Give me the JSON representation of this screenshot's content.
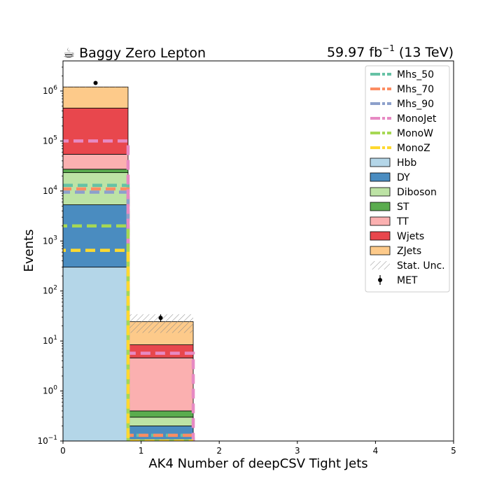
{
  "chart_data": {
    "type": "bar",
    "title_left": "☕ Baggy Zero Lepton",
    "title_right": {
      "main": "59.97 fb",
      "sup": "−1",
      "tail": " (13 TeV)"
    },
    "xlabel": "AK4 Number of deepCSV Tight Jets",
    "ylabel": "Events",
    "xlim": [
      0,
      5
    ],
    "ylim": [
      0.1,
      4000000
    ],
    "yscale": "log",
    "x_ticks": [
      {
        "value": 0,
        "label": "0"
      },
      {
        "value": 1,
        "label": "1"
      },
      {
        "value": 2,
        "label": "2"
      },
      {
        "value": 3,
        "label": "3"
      },
      {
        "value": 4,
        "label": "4"
      },
      {
        "value": 5,
        "label": "5"
      }
    ],
    "y_ticks": [
      {
        "value": 0.1,
        "base": "10",
        "exp": "−1"
      },
      {
        "value": 1,
        "base": "10",
        "exp": "0"
      },
      {
        "value": 10,
        "base": "10",
        "exp": "1"
      },
      {
        "value": 100,
        "base": "10",
        "exp": "2"
      },
      {
        "value": 1000,
        "base": "10",
        "exp": "3"
      },
      {
        "value": 10000,
        "base": "10",
        "exp": "4"
      },
      {
        "value": 100000,
        "base": "10",
        "exp": "5"
      },
      {
        "value": 1000000,
        "base": "10",
        "exp": "6"
      }
    ],
    "bin_edges": [
      0,
      0.833,
      1.667
    ],
    "stack": [
      {
        "name": "Hbb",
        "color": "#b4d6e8",
        "values": [
          300,
          0.1
        ]
      },
      {
        "name": "DY",
        "color": "#4a8cc0",
        "values": [
          5000,
          0.1
        ]
      },
      {
        "name": "Diboson",
        "color": "#bde3a5",
        "values": [
          18000,
          0.1
        ]
      },
      {
        "name": "ST",
        "color": "#5aac4e",
        "values": [
          4000,
          0.1
        ]
      },
      {
        "name": "TT",
        "color": "#fbb0b0",
        "values": [
          27000,
          4.2
        ]
      },
      {
        "name": "Wjets",
        "color": "#e8474d",
        "values": [
          400000,
          3.8
        ]
      },
      {
        "name": "ZJets",
        "color": "#fdca8a",
        "values": [
          750000,
          16
        ]
      }
    ],
    "signals": [
      {
        "name": "Mhs_50",
        "color": "#66c2a5",
        "values": [
          13000,
          0.13
        ]
      },
      {
        "name": "Mhs_70",
        "color": "#fc8d62",
        "values": [
          11000,
          0.13
        ]
      },
      {
        "name": "Mhs_90",
        "color": "#8da0cb",
        "values": [
          9500,
          0.1
        ]
      },
      {
        "name": "MonoJet",
        "color": "#e78ac3",
        "values": [
          100000,
          5.7
        ]
      },
      {
        "name": "MonoW",
        "color": "#a6d854",
        "values": [
          2000,
          0.1
        ]
      },
      {
        "name": "MonoZ",
        "color": "#ffd92f",
        "values": [
          650,
          0.1
        ]
      }
    ],
    "data_points": {
      "name": "MET",
      "x": [
        0.417,
        1.25
      ],
      "y": [
        1450000,
        29
      ],
      "yerr": [
        1200,
        5
      ]
    },
    "stat_unc_label": "Stat. Unc.",
    "legend_order": [
      "Mhs_50",
      "Mhs_70",
      "Mhs_90",
      "MonoJet",
      "MonoW",
      "MonoZ",
      "Hbb",
      "DY",
      "Diboson",
      "ST",
      "TT",
      "Wjets",
      "ZJets",
      "Stat. Unc.",
      "MET"
    ],
    "legend_position": "top-right",
    "grid": false
  }
}
